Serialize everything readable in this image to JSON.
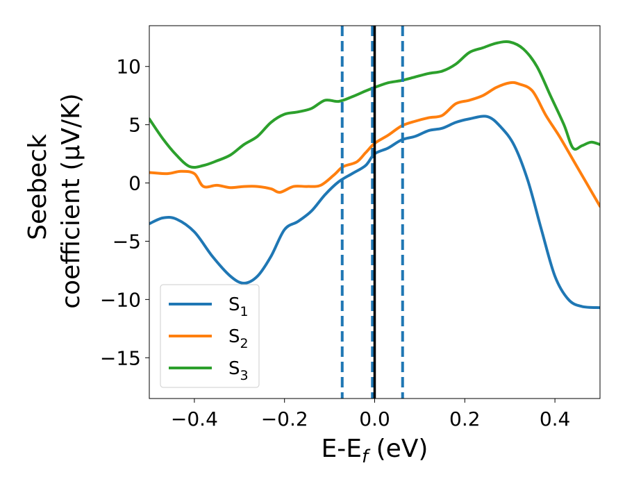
{
  "chart_data": {
    "type": "line",
    "xlabel": "E-E_f (eV)",
    "xlabel_parts": {
      "main": "E-E",
      "sub": "f",
      "unit": " (eV)"
    },
    "ylabel": "Seebeck coefficient (μV/K)",
    "ylabel_lines": [
      "Seebeck",
      "coefficient  (μV/K)"
    ],
    "xlim": [
      -0.5,
      0.5
    ],
    "ylim": [
      -18.5,
      13.5
    ],
    "xticks": [
      -0.4,
      -0.2,
      0.0,
      0.2,
      0.4
    ],
    "xtick_labels": [
      "−0.4",
      "−0.2",
      "0.0",
      "0.2",
      "0.4"
    ],
    "yticks": [
      -15,
      -10,
      -5,
      0,
      5,
      10
    ],
    "ytick_labels": [
      "−15",
      "−10",
      "−5",
      "0",
      "5",
      "10"
    ],
    "grid": false,
    "legend_position": "lower-left",
    "vertical_lines": [
      {
        "x": -0.072,
        "style": "dashed",
        "color": "#1f77b4"
      },
      {
        "x": -0.005,
        "style": "dashed",
        "color": "#1f77b4"
      },
      {
        "x": 0.0,
        "style": "solid",
        "color": "#000000"
      },
      {
        "x": 0.062,
        "style": "dashed",
        "color": "#1f77b4"
      }
    ],
    "series": [
      {
        "name": "S1",
        "label_main": "S",
        "label_sub": "1",
        "color": "#1f77b4",
        "x": [
          -0.5,
          -0.47,
          -0.44,
          -0.4,
          -0.36,
          -0.32,
          -0.29,
          -0.26,
          -0.23,
          -0.2,
          -0.17,
          -0.14,
          -0.11,
          -0.08,
          -0.05,
          -0.02,
          0.0,
          0.03,
          0.06,
          0.09,
          0.12,
          0.15,
          0.18,
          0.21,
          0.25,
          0.28,
          0.31,
          0.34,
          0.37,
          0.4,
          0.43,
          0.46,
          0.5
        ],
        "y": [
          -3.5,
          -3.0,
          -3.1,
          -4.2,
          -6.3,
          -8.0,
          -8.6,
          -8.0,
          -6.3,
          -4.0,
          -3.3,
          -2.4,
          -1.0,
          0.1,
          0.8,
          1.5,
          2.5,
          3.0,
          3.7,
          4.0,
          4.5,
          4.7,
          5.2,
          5.5,
          5.7,
          4.8,
          3.2,
          0.2,
          -4.0,
          -8.0,
          -10.0,
          -10.6,
          -10.7
        ]
      },
      {
        "name": "S2",
        "label_main": "S",
        "label_sub": "2",
        "color": "#ff7f0e",
        "x": [
          -0.5,
          -0.46,
          -0.43,
          -0.4,
          -0.38,
          -0.35,
          -0.32,
          -0.29,
          -0.26,
          -0.23,
          -0.21,
          -0.18,
          -0.15,
          -0.12,
          -0.09,
          -0.07,
          -0.04,
          -0.02,
          0.0,
          0.03,
          0.06,
          0.09,
          0.12,
          0.15,
          0.18,
          0.21,
          0.24,
          0.27,
          0.3,
          0.32,
          0.35,
          0.38,
          0.41,
          0.44,
          0.47,
          0.5
        ],
        "y": [
          0.9,
          0.8,
          1.0,
          0.8,
          -0.3,
          -0.2,
          -0.4,
          -0.3,
          -0.3,
          -0.5,
          -0.8,
          -0.3,
          -0.3,
          -0.2,
          0.7,
          1.4,
          1.8,
          2.6,
          3.4,
          4.1,
          4.9,
          5.3,
          5.6,
          5.8,
          6.8,
          7.1,
          7.5,
          8.2,
          8.6,
          8.5,
          7.9,
          5.8,
          4.0,
          2.0,
          0.0,
          -2.0
        ]
      },
      {
        "name": "S3",
        "label_main": "S",
        "label_sub": "3",
        "color": "#2ca02c",
        "x": [
          -0.5,
          -0.47,
          -0.44,
          -0.41,
          -0.38,
          -0.35,
          -0.32,
          -0.29,
          -0.26,
          -0.23,
          -0.2,
          -0.17,
          -0.14,
          -0.11,
          -0.08,
          -0.05,
          -0.02,
          0.0,
          0.03,
          0.06,
          0.09,
          0.12,
          0.15,
          0.18,
          0.21,
          0.24,
          0.27,
          0.3,
          0.33,
          0.36,
          0.39,
          0.42,
          0.44,
          0.46,
          0.48,
          0.5
        ],
        "y": [
          5.5,
          3.8,
          2.4,
          1.4,
          1.5,
          1.9,
          2.4,
          3.3,
          4.0,
          5.2,
          5.9,
          6.1,
          6.4,
          7.1,
          7.0,
          7.4,
          7.9,
          8.2,
          8.6,
          8.8,
          9.1,
          9.4,
          9.6,
          10.2,
          11.2,
          11.6,
          12.0,
          12.1,
          11.5,
          10.0,
          7.5,
          5.0,
          3.0,
          3.2,
          3.5,
          3.3
        ]
      }
    ]
  }
}
